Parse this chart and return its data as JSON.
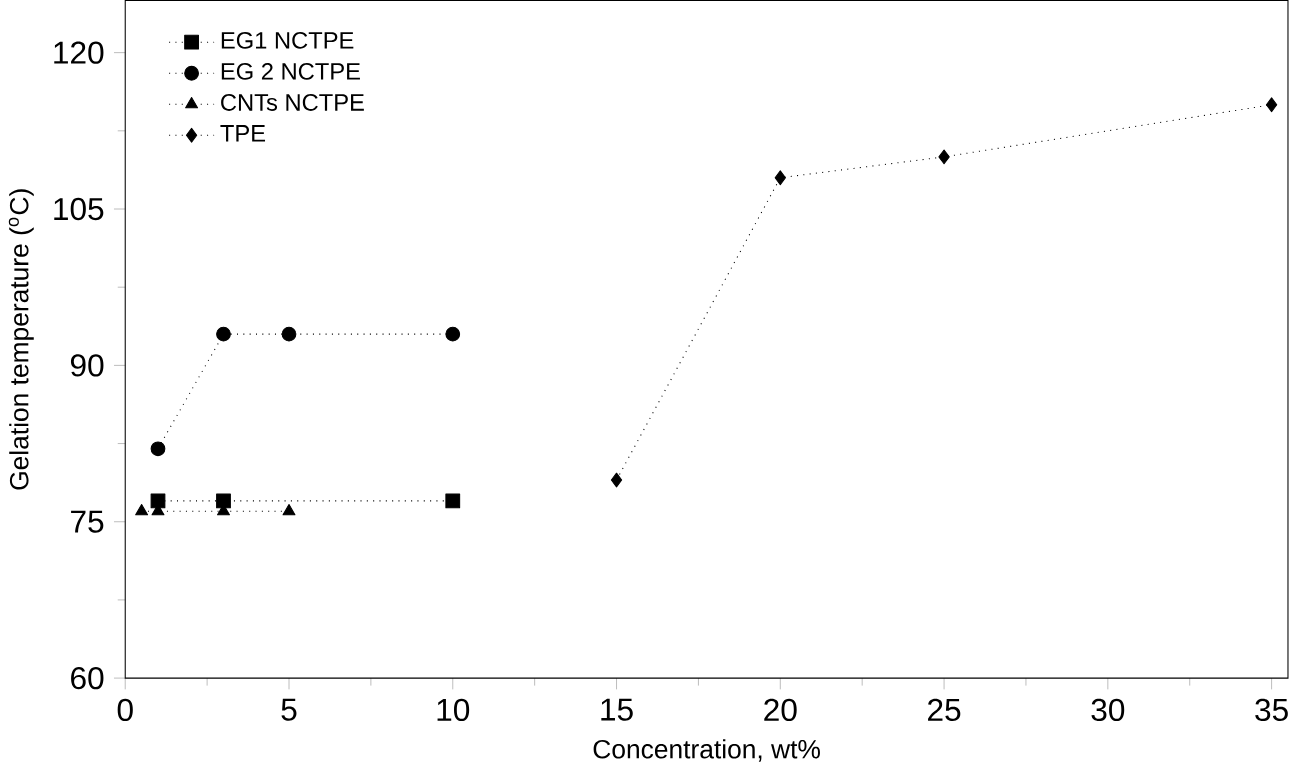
{
  "chart_data": {
    "type": "line",
    "xlabel": "Concentration, wt%",
    "ylabel": "Gelation temperature ($^{o}$C)",
    "xlim": [
      0,
      35.5
    ],
    "ylim": [
      60,
      125
    ],
    "xticks": [
      0,
      5,
      10,
      15,
      20,
      25,
      30,
      35
    ],
    "yticks": [
      60,
      75,
      90,
      105,
      120
    ],
    "legend": "top left",
    "line_style": "dotted",
    "grid": false,
    "series": [
      {
        "name": "EG1 NCTPE",
        "color": "#000000",
        "marker": "square",
        "x": [
          1,
          3,
          10
        ],
        "values": [
          77,
          77,
          77
        ]
      },
      {
        "name": "EG 2 NCTPE",
        "color": "#000000",
        "marker": "circle",
        "x": [
          1,
          3,
          5,
          10
        ],
        "values": [
          82,
          93,
          93,
          93
        ]
      },
      {
        "name": "CNTs NCTPE",
        "color": "#000000",
        "marker": "triangle",
        "x": [
          0.5,
          1,
          3,
          5
        ],
        "values": [
          76,
          76,
          76,
          76
        ]
      },
      {
        "name": "TPE",
        "color": "#000000",
        "marker": "diamond",
        "x": [
          15,
          20,
          25,
          35
        ],
        "values": [
          79,
          108,
          110,
          115
        ]
      }
    ]
  }
}
